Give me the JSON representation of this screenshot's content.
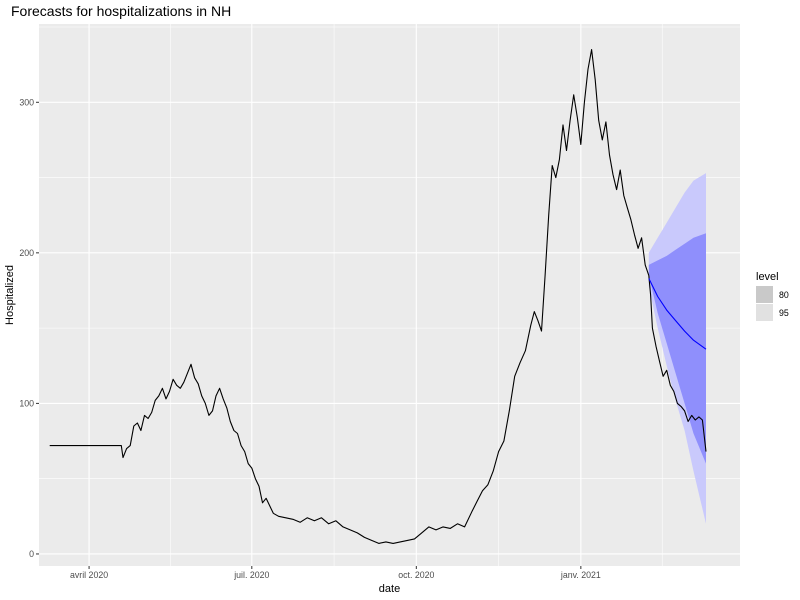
{
  "chart_data": {
    "type": "line",
    "title": "Forecasts for hospitalizations in NH",
    "xlabel": "date",
    "ylabel": "Hospitalized",
    "x_range": [
      "2020-03-04",
      "2021-03-31"
    ],
    "ylim": [
      -8,
      352
    ],
    "y_ticks": [
      0,
      100,
      200,
      300
    ],
    "y_tick_labels": [
      "0",
      "100",
      "200",
      "300"
    ],
    "x_ticks": [
      "2020-04-01",
      "2020-07-01",
      "2020-10-01",
      "2021-01-01"
    ],
    "x_tick_labels": [
      "avril 2020",
      "juil. 2020",
      "oct. 2020",
      "janv. 2021"
    ],
    "grid": true,
    "legend": {
      "title": "level",
      "position": "right",
      "entries": [
        {
          "label": "80",
          "color": "#c9c9c9"
        },
        {
          "label": "95",
          "color": "#e1e1e1"
        }
      ]
    },
    "colors": {
      "panel": "#ebebeb",
      "grid": "#ffffff",
      "observed": "#000000",
      "forecast": "#0000ff",
      "band80": "#8f8ffc",
      "band95": "#c9c9fc"
    },
    "series": [
      {
        "points": [
          [
            "2020-03-10",
            72
          ],
          [
            "2020-03-20",
            72
          ],
          [
            "2020-03-30",
            72
          ],
          [
            "2020-04-09",
            72
          ],
          [
            "2020-04-19",
            72
          ],
          [
            "2020-04-20",
            64
          ],
          [
            "2020-04-22",
            70
          ],
          [
            "2020-04-24",
            72
          ],
          [
            "2020-04-26",
            85
          ],
          [
            "2020-04-28",
            87
          ],
          [
            "2020-04-30",
            82
          ],
          [
            "2020-05-02",
            92
          ],
          [
            "2020-05-04",
            90
          ],
          [
            "2020-05-06",
            94
          ],
          [
            "2020-05-08",
            102
          ],
          [
            "2020-05-10",
            105
          ],
          [
            "2020-05-12",
            110
          ],
          [
            "2020-05-14",
            103
          ],
          [
            "2020-05-16",
            108
          ],
          [
            "2020-05-18",
            116
          ],
          [
            "2020-05-20",
            112
          ],
          [
            "2020-05-22",
            110
          ],
          [
            "2020-05-24",
            114
          ],
          [
            "2020-05-26",
            120
          ],
          [
            "2020-05-28",
            126
          ],
          [
            "2020-05-30",
            117
          ],
          [
            "2020-06-01",
            113
          ],
          [
            "2020-06-03",
            105
          ],
          [
            "2020-06-05",
            100
          ],
          [
            "2020-06-07",
            92
          ],
          [
            "2020-06-09",
            95
          ],
          [
            "2020-06-11",
            105
          ],
          [
            "2020-06-13",
            110
          ],
          [
            "2020-06-15",
            103
          ],
          [
            "2020-06-17",
            97
          ],
          [
            "2020-06-19",
            88
          ],
          [
            "2020-06-21",
            82
          ],
          [
            "2020-06-23",
            80
          ],
          [
            "2020-06-25",
            72
          ],
          [
            "2020-06-27",
            68
          ],
          [
            "2020-06-29",
            60
          ],
          [
            "2020-07-01",
            57
          ],
          [
            "2020-07-03",
            50
          ],
          [
            "2020-07-05",
            45
          ],
          [
            "2020-07-07",
            34
          ],
          [
            "2020-07-09",
            37
          ],
          [
            "2020-07-11",
            32
          ],
          [
            "2020-07-13",
            27
          ],
          [
            "2020-07-16",
            25
          ],
          [
            "2020-07-20",
            24
          ],
          [
            "2020-07-24",
            23
          ],
          [
            "2020-07-28",
            21
          ],
          [
            "2020-08-01",
            24
          ],
          [
            "2020-08-05",
            22
          ],
          [
            "2020-08-09",
            24
          ],
          [
            "2020-08-13",
            20
          ],
          [
            "2020-08-17",
            22
          ],
          [
            "2020-08-21",
            18
          ],
          [
            "2020-08-25",
            16
          ],
          [
            "2020-08-29",
            14
          ],
          [
            "2020-09-02",
            11
          ],
          [
            "2020-09-06",
            9
          ],
          [
            "2020-09-10",
            7
          ],
          [
            "2020-09-14",
            8
          ],
          [
            "2020-09-18",
            7
          ],
          [
            "2020-09-22",
            8
          ],
          [
            "2020-09-26",
            9
          ],
          [
            "2020-09-30",
            10
          ],
          [
            "2020-10-04",
            14
          ],
          [
            "2020-10-08",
            18
          ],
          [
            "2020-10-12",
            16
          ],
          [
            "2020-10-16",
            18
          ],
          [
            "2020-10-20",
            17
          ],
          [
            "2020-10-24",
            20
          ],
          [
            "2020-10-28",
            18
          ],
          [
            "2020-11-01",
            28
          ],
          [
            "2020-11-04",
            35
          ],
          [
            "2020-11-07",
            42
          ],
          [
            "2020-11-10",
            46
          ],
          [
            "2020-11-13",
            55
          ],
          [
            "2020-11-16",
            68
          ],
          [
            "2020-11-19",
            75
          ],
          [
            "2020-11-22",
            95
          ],
          [
            "2020-11-25",
            118
          ],
          [
            "2020-11-28",
            127
          ],
          [
            "2020-12-01",
            135
          ],
          [
            "2020-12-04",
            152
          ],
          [
            "2020-12-06",
            161
          ],
          [
            "2020-12-08",
            155
          ],
          [
            "2020-12-10",
            148
          ],
          [
            "2020-12-12",
            185
          ],
          [
            "2020-12-14",
            225
          ],
          [
            "2020-12-16",
            258
          ],
          [
            "2020-12-18",
            250
          ],
          [
            "2020-12-20",
            262
          ],
          [
            "2020-12-22",
            285
          ],
          [
            "2020-12-24",
            268
          ],
          [
            "2020-12-26",
            288
          ],
          [
            "2020-12-28",
            305
          ],
          [
            "2020-12-30",
            290
          ],
          [
            "2021-01-01",
            272
          ],
          [
            "2021-01-03",
            300
          ],
          [
            "2021-01-05",
            322
          ],
          [
            "2021-01-07",
            335
          ],
          [
            "2021-01-09",
            315
          ],
          [
            "2021-01-11",
            288
          ],
          [
            "2021-01-13",
            275
          ],
          [
            "2021-01-15",
            287
          ],
          [
            "2021-01-17",
            265
          ],
          [
            "2021-01-19",
            252
          ],
          [
            "2021-01-21",
            242
          ],
          [
            "2021-01-23",
            255
          ],
          [
            "2021-01-25",
            238
          ],
          [
            "2021-01-27",
            230
          ],
          [
            "2021-01-29",
            222
          ],
          [
            "2021-01-31",
            212
          ],
          [
            "2021-02-02",
            203
          ],
          [
            "2021-02-04",
            210
          ],
          [
            "2021-02-06",
            192
          ],
          [
            "2021-02-08",
            185
          ]
        ]
      },
      {
        "points": [
          [
            "2021-02-08",
            185
          ],
          [
            "2021-02-09",
            172
          ],
          [
            "2021-02-10",
            150
          ],
          [
            "2021-02-12",
            138
          ],
          [
            "2021-02-14",
            128
          ],
          [
            "2021-02-16",
            118
          ],
          [
            "2021-02-18",
            122
          ],
          [
            "2021-02-20",
            112
          ],
          [
            "2021-02-22",
            108
          ],
          [
            "2021-02-24",
            100
          ],
          [
            "2021-02-26",
            98
          ],
          [
            "2021-02-28",
            95
          ],
          [
            "2021-03-02",
            88
          ],
          [
            "2021-03-04",
            92
          ],
          [
            "2021-03-06",
            89
          ],
          [
            "2021-03-08",
            91
          ],
          [
            "2021-03-10",
            89
          ],
          [
            "2021-03-12",
            68
          ]
        ]
      },
      {
        "points": [
          [
            "2021-02-08",
            183
          ],
          [
            "2021-02-13",
            171
          ],
          [
            "2021-02-18",
            162
          ],
          [
            "2021-02-23",
            155
          ],
          [
            "2021-02-28",
            148
          ],
          [
            "2021-03-05",
            142
          ],
          [
            "2021-03-12",
            136
          ]
        ]
      }
    ],
    "bands": {
      "x": [
        "2021-02-08",
        "2021-02-13",
        "2021-02-18",
        "2021-02-23",
        "2021-02-28",
        "2021-03-05",
        "2021-03-12"
      ],
      "lo95": [
        178,
        150,
        125,
        102,
        82,
        55,
        20
      ],
      "hi95": [
        200,
        210,
        220,
        230,
        240,
        248,
        253
      ],
      "lo80": [
        185,
        160,
        140,
        120,
        100,
        80,
        60
      ],
      "hi80": [
        192,
        195,
        198,
        202,
        206,
        210,
        213
      ]
    }
  }
}
